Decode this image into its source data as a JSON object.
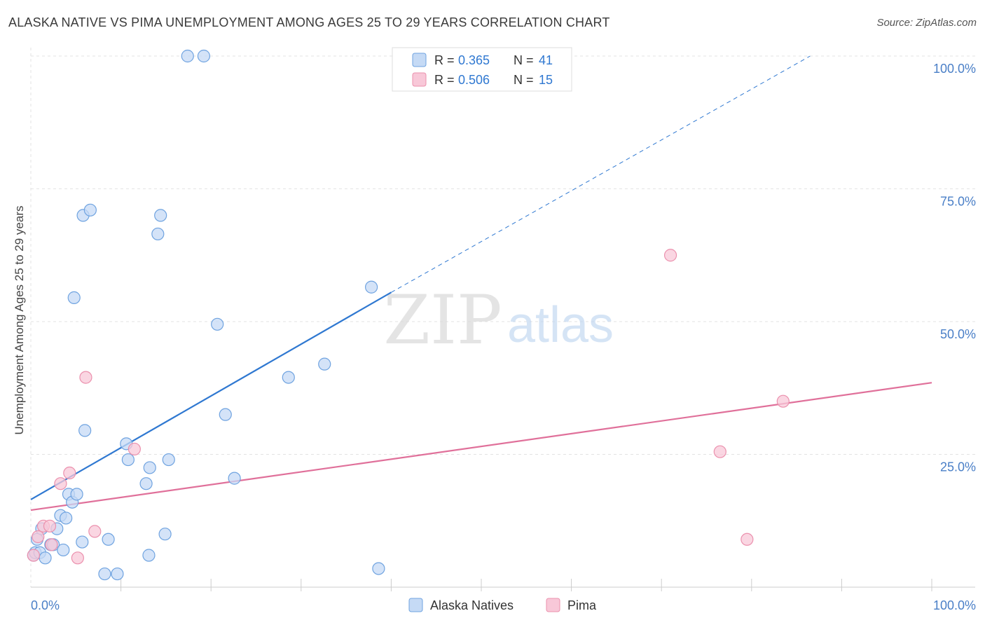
{
  "title": "ALASKA NATIVE VS PIMA UNEMPLOYMENT AMONG AGES 25 TO 29 YEARS CORRELATION CHART",
  "source": "Source: ZipAtlas.com",
  "watermark": {
    "zip": "ZIP",
    "atlas": "atlas"
  },
  "chart_data": {
    "type": "scatter",
    "xlabel": "",
    "ylabel": "Unemployment Among Ages 25 to 29 years",
    "xlim": [
      0,
      100
    ],
    "ylim": [
      0,
      100
    ],
    "x_tick_labels": [
      "0.0%",
      "100.0%"
    ],
    "y_ticks": [
      25,
      50,
      75,
      100
    ],
    "y_tick_labels": [
      "25.0%",
      "50.0%",
      "75.0%",
      "100.0%"
    ],
    "grid": true,
    "legend_position": "top-center",
    "legend": [
      {
        "r_label": "R =",
        "r_value": "0.365",
        "n_label": "N =",
        "n_value": "41"
      },
      {
        "r_label": "R =",
        "r_value": "0.506",
        "n_label": "N =",
        "n_value": "15"
      }
    ],
    "series": [
      {
        "name": "Alaska Natives",
        "color": "#6fa3e0",
        "fill": "#c5daf5",
        "line_color": "#2f78d1",
        "trend": {
          "x0": 0,
          "y0": 16.5,
          "x1": 40,
          "y1": 55.5,
          "dashed_to_x": 86.5,
          "dashed_to_y": 100
        },
        "points": [
          [
            0.3,
            6.0
          ],
          [
            0.5,
            6.5
          ],
          [
            0.7,
            9.0
          ],
          [
            1.0,
            6.5
          ],
          [
            1.2,
            11.0
          ],
          [
            1.6,
            5.5
          ],
          [
            2.2,
            8.0
          ],
          [
            2.5,
            8.0
          ],
          [
            2.9,
            11.0
          ],
          [
            3.3,
            13.5
          ],
          [
            3.6,
            7.0
          ],
          [
            3.9,
            13.0
          ],
          [
            4.2,
            17.5
          ],
          [
            4.6,
            16.0
          ],
          [
            5.1,
            17.5
          ],
          [
            5.7,
            8.5
          ],
          [
            6.0,
            29.5
          ],
          [
            4.8,
            54.5
          ],
          [
            5.8,
            70.0
          ],
          [
            6.6,
            71.0
          ],
          [
            8.6,
            9.0
          ],
          [
            8.2,
            2.5
          ],
          [
            9.6,
            2.5
          ],
          [
            10.6,
            27.0
          ],
          [
            10.8,
            24.0
          ],
          [
            12.8,
            19.5
          ],
          [
            13.1,
            6.0
          ],
          [
            13.2,
            22.5
          ],
          [
            14.1,
            66.5
          ],
          [
            14.4,
            70.0
          ],
          [
            14.9,
            10.0
          ],
          [
            15.3,
            24.0
          ],
          [
            17.4,
            100.0
          ],
          [
            19.2,
            100.0
          ],
          [
            20.7,
            49.5
          ],
          [
            21.6,
            32.5
          ],
          [
            22.6,
            20.5
          ],
          [
            28.6,
            39.5
          ],
          [
            32.6,
            42.0
          ],
          [
            37.8,
            56.5
          ],
          [
            38.6,
            3.5
          ]
        ]
      },
      {
        "name": "Pima",
        "color": "#eb90ad",
        "fill": "#f8c8d8",
        "line_color": "#e0709a",
        "trend": {
          "x0": 0,
          "y0": 14.5,
          "x1": 100,
          "y1": 38.5
        },
        "points": [
          [
            0.3,
            6.0
          ],
          [
            0.8,
            9.5
          ],
          [
            1.4,
            11.5
          ],
          [
            2.1,
            11.5
          ],
          [
            2.3,
            8.0
          ],
          [
            3.3,
            19.5
          ],
          [
            4.3,
            21.5
          ],
          [
            5.2,
            5.5
          ],
          [
            6.1,
            39.5
          ],
          [
            7.1,
            10.5
          ],
          [
            11.5,
            26.0
          ],
          [
            71.0,
            62.5
          ],
          [
            76.5,
            25.5
          ],
          [
            79.5,
            9.0
          ],
          [
            83.5,
            35.0
          ]
        ]
      }
    ]
  }
}
